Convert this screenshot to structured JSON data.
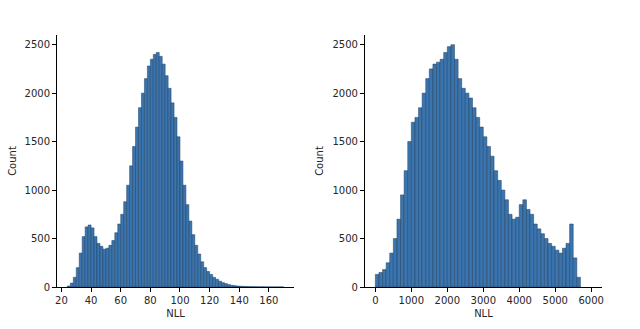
{
  "chart_data": [
    {
      "type": "histogram",
      "color": "#3b75af",
      "grid": false,
      "xlabel": "NLL",
      "ylabel": "Count",
      "xlim": [
        17,
        177
      ],
      "ylim": [
        0,
        2600
      ],
      "xticks": [
        20,
        40,
        60,
        80,
        100,
        120,
        140,
        160
      ],
      "yticks": [
        0,
        500,
        1000,
        1500,
        2000,
        2500
      ],
      "bins": [
        24,
        26,
        28,
        30,
        32,
        34,
        36,
        38,
        40,
        42,
        44,
        46,
        48,
        50,
        52,
        54,
        56,
        58,
        60,
        62,
        64,
        66,
        68,
        70,
        72,
        74,
        76,
        78,
        80,
        82,
        84,
        86,
        88,
        90,
        92,
        94,
        96,
        98,
        100,
        102,
        104,
        106,
        108,
        110,
        112,
        114,
        116,
        118,
        120,
        122,
        124,
        126,
        128,
        130,
        132,
        134,
        136,
        138,
        140,
        142,
        144,
        146,
        148,
        150,
        152,
        154,
        156,
        158,
        160,
        162,
        164,
        166,
        168,
        170
      ],
      "counts": [
        10,
        40,
        100,
        200,
        350,
        520,
        620,
        640,
        610,
        520,
        450,
        420,
        390,
        400,
        430,
        480,
        560,
        650,
        750,
        880,
        1050,
        1250,
        1450,
        1650,
        1850,
        2000,
        2150,
        2280,
        2350,
        2400,
        2420,
        2380,
        2300,
        2180,
        2050,
        1900,
        1750,
        1550,
        1300,
        1050,
        850,
        680,
        540,
        430,
        340,
        260,
        200,
        160,
        130,
        100,
        80,
        60,
        45,
        35,
        25,
        18,
        14,
        10,
        8,
        6,
        5,
        4,
        3,
        3,
        2,
        2,
        2,
        1,
        1,
        1,
        1,
        1,
        1
      ]
    },
    {
      "type": "histogram",
      "color": "#3b75af",
      "grid": false,
      "xlabel": "NLL",
      "ylabel": "Count",
      "xlim": [
        -290,
        6300
      ],
      "ylim": [
        0,
        2600
      ],
      "xticks": [
        0,
        1000,
        2000,
        3000,
        4000,
        5000,
        6000
      ],
      "yticks": [
        0,
        500,
        1000,
        1500,
        2000,
        2500
      ],
      "bins": [
        0,
        100,
        200,
        300,
        400,
        500,
        600,
        700,
        800,
        900,
        1000,
        1100,
        1200,
        1300,
        1400,
        1500,
        1600,
        1700,
        1800,
        1900,
        2000,
        2100,
        2200,
        2300,
        2400,
        2500,
        2600,
        2700,
        2800,
        2900,
        3000,
        3100,
        3200,
        3300,
        3400,
        3500,
        3600,
        3700,
        3800,
        3900,
        4000,
        4100,
        4200,
        4300,
        4400,
        4500,
        4600,
        4700,
        4800,
        4900,
        5000,
        5100,
        5200,
        5300,
        5400,
        5500,
        5600,
        5700
      ],
      "counts": [
        130,
        150,
        180,
        250,
        350,
        500,
        700,
        950,
        1200,
        1500,
        1700,
        1750,
        1850,
        2000,
        2150,
        2250,
        2300,
        2320,
        2350,
        2420,
        2480,
        2500,
        2350,
        2150,
        2050,
        2000,
        1950,
        1850,
        1750,
        1650,
        1550,
        1450,
        1350,
        1200,
        1100,
        1000,
        900,
        750,
        700,
        720,
        850,
        900,
        800,
        750,
        650,
        600,
        550,
        500,
        450,
        420,
        380,
        350,
        400,
        450,
        650,
        300,
        100
      ]
    }
  ]
}
